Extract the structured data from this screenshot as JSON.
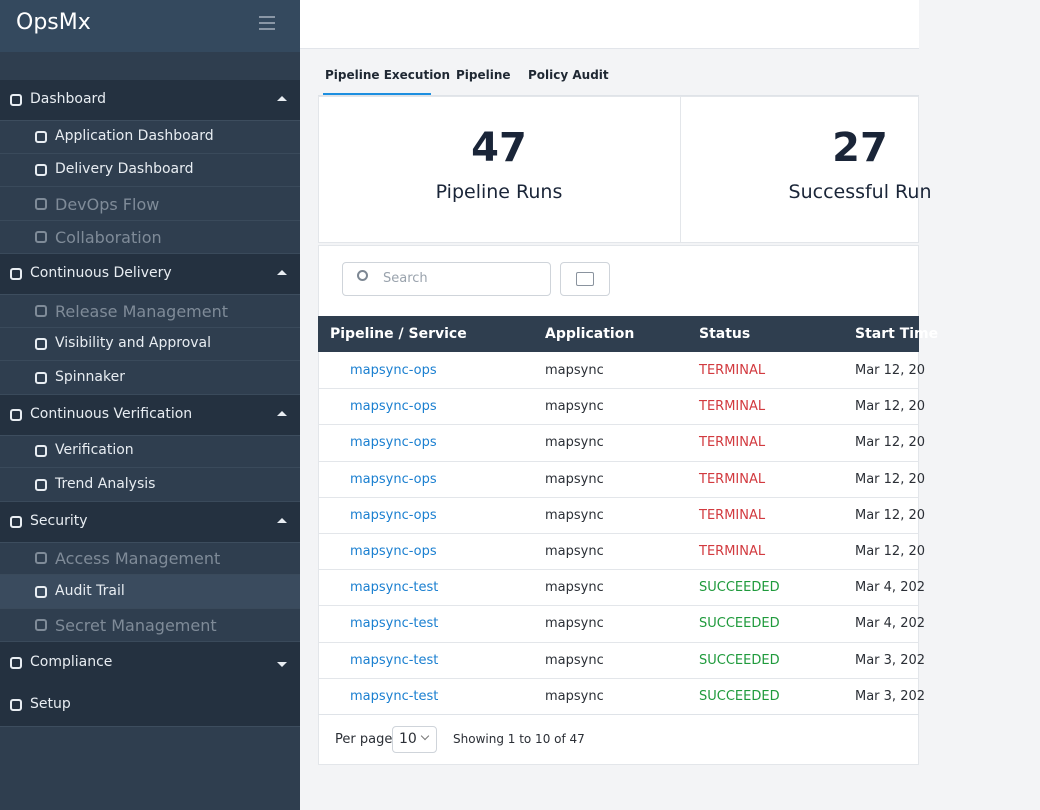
{
  "logo": "OpsMx",
  "sidebar": [
    {
      "label": "Dashboard",
      "expanded": true,
      "children": [
        {
          "label": "Application Dashboard",
          "muted": false
        },
        {
          "label": "Delivery Dashboard",
          "muted": false
        },
        {
          "label": "DevOps Flow",
          "muted": true
        },
        {
          "label": "Collaboration",
          "muted": true
        }
      ]
    },
    {
      "label": "Continuous Delivery",
      "expanded": true,
      "children": [
        {
          "label": "Release Management",
          "muted": true
        },
        {
          "label": "Visibility and Approval",
          "muted": false
        },
        {
          "label": "Spinnaker",
          "muted": false
        }
      ]
    },
    {
      "label": "Continuous Verification",
      "expanded": true,
      "children": [
        {
          "label": "Verification",
          "muted": false
        },
        {
          "label": "Trend Analysis",
          "muted": false
        }
      ]
    },
    {
      "label": "Security",
      "expanded": true,
      "children": [
        {
          "label": "Access Management",
          "muted": true
        },
        {
          "label": "Audit Trail",
          "muted": false,
          "active": true
        },
        {
          "label": "Secret Management",
          "muted": true
        }
      ]
    },
    {
      "label": "Compliance",
      "expanded": false,
      "children": []
    },
    {
      "label": "Setup",
      "children": []
    }
  ],
  "tabs": [
    "Pipeline Execution",
    "Pipeline",
    "Policy Audit"
  ],
  "stats": [
    {
      "value": "47",
      "label": "Pipeline Runs"
    },
    {
      "value": "27",
      "label": "Successful Run"
    }
  ],
  "search_placeholder": "Search",
  "table": {
    "columns": [
      "Pipeline / Service",
      "Application",
      "Status",
      "Start Time"
    ],
    "status_colors": {
      "TERMINAL": "#d23a3f",
      "SUCCEEDED": "#1f9a3c"
    },
    "rows": [
      [
        "mapsync-ops",
        "mapsync",
        "TERMINAL",
        "Mar 12, 20"
      ],
      [
        "mapsync-ops",
        "mapsync",
        "TERMINAL",
        "Mar 12, 20"
      ],
      [
        "mapsync-ops",
        "mapsync",
        "TERMINAL",
        "Mar 12, 20"
      ],
      [
        "mapsync-ops",
        "mapsync",
        "TERMINAL",
        "Mar 12, 20"
      ],
      [
        "mapsync-ops",
        "mapsync",
        "TERMINAL",
        "Mar 12, 20"
      ],
      [
        "mapsync-ops",
        "mapsync",
        "TERMINAL",
        "Mar 12, 20"
      ],
      [
        "mapsync-test",
        "mapsync",
        "SUCCEEDED",
        "Mar 4, 202"
      ],
      [
        "mapsync-test",
        "mapsync",
        "SUCCEEDED",
        "Mar 4, 202"
      ],
      [
        "mapsync-test",
        "mapsync",
        "SUCCEEDED",
        "Mar 3, 202"
      ],
      [
        "mapsync-test",
        "mapsync",
        "SUCCEEDED",
        "Mar 3, 202"
      ]
    ]
  },
  "footer": {
    "per_page_label": "Per page",
    "per_page": "10",
    "showing": "Showing 1 to 10 of 47"
  }
}
